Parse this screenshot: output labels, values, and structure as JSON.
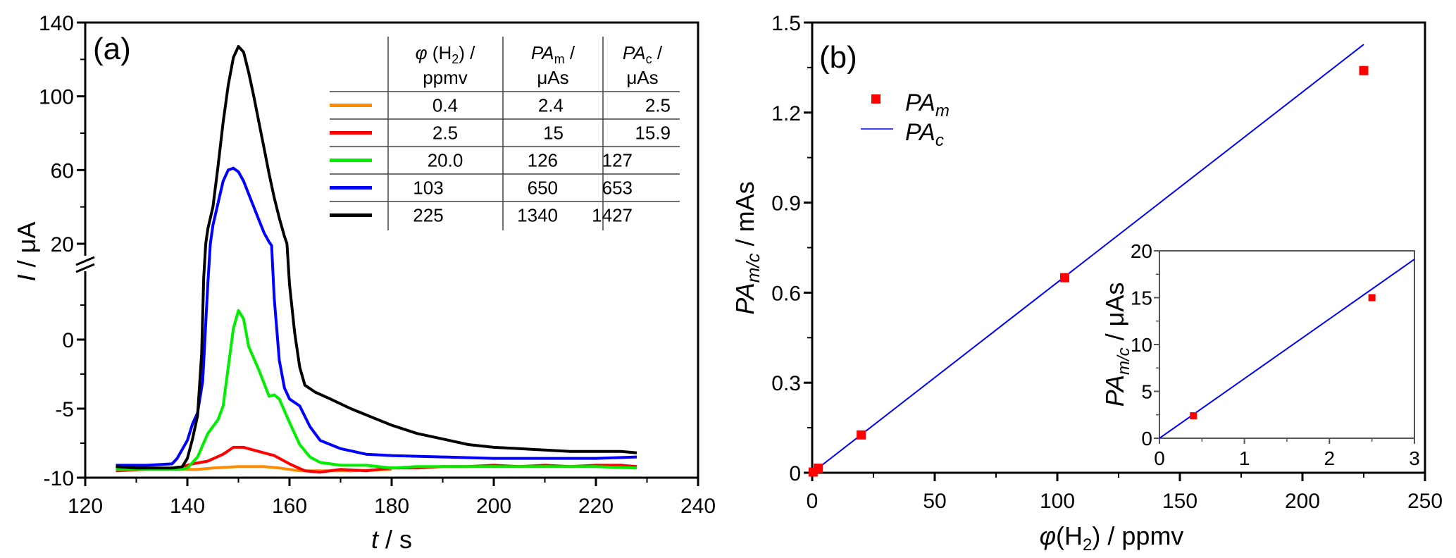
{
  "chart_data": [
    {
      "panel_label": "(a)",
      "type": "line",
      "xlabel_italic": "t",
      "xlabel_rest": " / s",
      "ylabel_italic": "I",
      "ylabel_rest": " / μA",
      "xlim": [
        120,
        240
      ],
      "x_ticks": [
        120,
        140,
        160,
        180,
        200,
        220,
        240
      ],
      "x_tick_labels": [
        "120",
        "140",
        "160",
        "180",
        "200",
        "220",
        "240"
      ],
      "y_axis_break": {
        "lower_range": [
          -10,
          5
        ],
        "upper_range": [
          10,
          140
        ]
      },
      "y_ticks": [
        -10,
        -5,
        0,
        20,
        60,
        100,
        140
      ],
      "y_tick_labels": [
        "-10",
        "-5",
        "0",
        "20",
        "60",
        "100",
        "140"
      ],
      "y_minor_ticks": [
        -7.5,
        -2.5,
        2.5,
        40,
        80,
        120
      ],
      "grid": false,
      "legend_table": {
        "headers": [
          {
            "main_italic": "φ",
            "main": " (H",
            "sub": "2",
            "tail": ") /",
            "line2": "ppmv"
          },
          {
            "main_italic": "PA",
            "sub": "m",
            "tail": " /",
            "line2": "μAs"
          },
          {
            "main_italic": "PA",
            "sub": "c",
            "tail": " /",
            "line2": "μAs"
          }
        ],
        "rows": [
          {
            "color": "#ff8c00",
            "phi": "0.4",
            "pa_m": "2.4",
            "pa_c": "2.5"
          },
          {
            "color": "#ff0000",
            "phi": "2.5",
            "pa_m": "15",
            "pa_c": "15.9"
          },
          {
            "color": "#00ee00",
            "phi": "20.0",
            "pa_m": "126",
            "pa_c": "127"
          },
          {
            "color": "#0000ff",
            "phi": "103",
            "pa_m": "650",
            "pa_c": "653"
          },
          {
            "color": "#000000",
            "phi": "225",
            "pa_m": "1340",
            "pa_c": "1427"
          }
        ]
      },
      "series": [
        {
          "name": "0.4 ppmv",
          "color": "#ff8c00",
          "points": [
            [
              138,
              -9.4
            ],
            [
              142,
              -9.4
            ],
            [
              145,
              -9.3
            ],
            [
              150,
              -9.2
            ],
            [
              155,
              -9.2
            ],
            [
              158,
              -9.3
            ],
            [
              162,
              -9.5
            ],
            [
              166,
              -9.5
            ],
            [
              172,
              -9.5
            ],
            [
              180,
              -9.4
            ]
          ]
        },
        {
          "name": "2.5 ppmv",
          "color": "#ff0000",
          "points": [
            [
              126,
              -9.5
            ],
            [
              132,
              -9.4
            ],
            [
              138,
              -9.3
            ],
            [
              141,
              -9.0
            ],
            [
              144,
              -8.8
            ],
            [
              147,
              -8.3
            ],
            [
              149,
              -7.8
            ],
            [
              151,
              -7.8
            ],
            [
              154,
              -8.1
            ],
            [
              157,
              -8.4
            ],
            [
              160,
              -9.0
            ],
            [
              163,
              -9.5
            ],
            [
              166,
              -9.6
            ],
            [
              170,
              -9.4
            ],
            [
              175,
              -9.5
            ],
            [
              180,
              -9.3
            ],
            [
              185,
              -9.3
            ],
            [
              190,
              -9.2
            ],
            [
              195,
              -9.2
            ],
            [
              200,
              -9.1
            ],
            [
              205,
              -9.2
            ],
            [
              210,
              -9.1
            ],
            [
              215,
              -9.2
            ],
            [
              220,
              -9.1
            ],
            [
              225,
              -9.1
            ],
            [
              228,
              -9.2
            ]
          ]
        },
        {
          "name": "20.0 ppmv",
          "color": "#00ee00",
          "points": [
            [
              126,
              -9.4
            ],
            [
              132,
              -9.4
            ],
            [
              138,
              -9.4
            ],
            [
              140,
              -9.3
            ],
            [
              142,
              -8.5
            ],
            [
              144,
              -6.8
            ],
            [
              146,
              -5.8
            ],
            [
              147,
              -4.8
            ],
            [
              148,
              -2.0
            ],
            [
              149,
              0.8
            ],
            [
              150,
              2.1
            ],
            [
              151,
              1.5
            ],
            [
              152,
              -0.5
            ],
            [
              154,
              -2.2
            ],
            [
              156,
              -4.1
            ],
            [
              157,
              -4.0
            ],
            [
              158,
              -4.3
            ],
            [
              160,
              -6.0
            ],
            [
              162,
              -7.6
            ],
            [
              164,
              -8.5
            ],
            [
              166,
              -8.9
            ],
            [
              170,
              -9.1
            ],
            [
              175,
              -9.1
            ],
            [
              180,
              -9.3
            ],
            [
              185,
              -9.2
            ],
            [
              190,
              -9.2
            ],
            [
              200,
              -9.2
            ],
            [
              210,
              -9.2
            ],
            [
              220,
              -9.2
            ],
            [
              228,
              -9.3
            ]
          ]
        },
        {
          "name": "103 ppmv",
          "color": "#0000ff",
          "points": [
            [
              126,
              -9.1
            ],
            [
              132,
              -9.1
            ],
            [
              137,
              -9.0
            ],
            [
              138,
              -8.6
            ],
            [
              140,
              -7.3
            ],
            [
              141,
              -6.1
            ],
            [
              142,
              -5.3
            ],
            [
              143,
              -3.0
            ],
            [
              144,
              4.0
            ],
            [
              144.5,
              20
            ],
            [
              145,
              30
            ],
            [
              146,
              42
            ],
            [
              147,
              54
            ],
            [
              148,
              60
            ],
            [
              149,
              61
            ],
            [
              150,
              59
            ],
            [
              151,
              54
            ],
            [
              152,
              47
            ],
            [
              153,
              40
            ],
            [
              154,
              33
            ],
            [
              155,
              26
            ],
            [
              156,
              21
            ],
            [
              156.5,
              19
            ],
            [
              157,
              3.0
            ],
            [
              158,
              -1.5
            ],
            [
              159,
              -3.5
            ],
            [
              160,
              -4.3
            ],
            [
              162,
              -4.8
            ],
            [
              164,
              -6.3
            ],
            [
              166,
              -7.3
            ],
            [
              170,
              -7.9
            ],
            [
              175,
              -8.3
            ],
            [
              180,
              -8.4
            ],
            [
              190,
              -8.5
            ],
            [
              200,
              -8.6
            ],
            [
              210,
              -8.6
            ],
            [
              220,
              -8.6
            ],
            [
              228,
              -8.5
            ]
          ]
        },
        {
          "name": "225 ppmv",
          "color": "#000000",
          "points": [
            [
              126,
              -9.2
            ],
            [
              130,
              -9.3
            ],
            [
              134,
              -9.3
            ],
            [
              137,
              -9.3
            ],
            [
              139,
              -9.2
            ],
            [
              140,
              -8.6
            ],
            [
              141,
              -7.2
            ],
            [
              142,
              -5.5
            ],
            [
              142.8,
              -1.0
            ],
            [
              143.2,
              4.5
            ],
            [
              143.6,
              20
            ],
            [
              144,
              28
            ],
            [
              145,
              40
            ],
            [
              146,
              62
            ],
            [
              147,
              86
            ],
            [
              148,
              106
            ],
            [
              149,
              121
            ],
            [
              150,
              127
            ],
            [
              151,
              124
            ],
            [
              152,
              113
            ],
            [
              153,
              100
            ],
            [
              154,
              86
            ],
            [
              155,
              72
            ],
            [
              156,
              58
            ],
            [
              157,
              45
            ],
            [
              158,
              34
            ],
            [
              159,
              24
            ],
            [
              159.5,
              20
            ],
            [
              160,
              4.0
            ],
            [
              161,
              0.5
            ],
            [
              162,
              -2.0
            ],
            [
              163,
              -3.3
            ],
            [
              165,
              -3.8
            ],
            [
              168,
              -4.3
            ],
            [
              172,
              -5.0
            ],
            [
              176,
              -5.6
            ],
            [
              180,
              -6.2
            ],
            [
              185,
              -6.8
            ],
            [
              190,
              -7.2
            ],
            [
              195,
              -7.6
            ],
            [
              200,
              -7.8
            ],
            [
              205,
              -7.9
            ],
            [
              210,
              -8.0
            ],
            [
              215,
              -8.1
            ],
            [
              220,
              -8.1
            ],
            [
              225,
              -8.1
            ],
            [
              228,
              -8.2
            ]
          ]
        }
      ]
    },
    {
      "panel_label": "(b)",
      "type": "scatter",
      "xlabel_italic": "φ",
      "xlabel_rest": "(H",
      "xlabel_sub": "2",
      "xlabel_tail": ") / ppmv",
      "ylabel_italic": "PA",
      "ylabel_sub": "m/c",
      "ylabel_rest": " / mAs",
      "xlim": [
        0,
        250
      ],
      "ylim": [
        0,
        1.5
      ],
      "x_ticks": [
        0,
        50,
        100,
        150,
        200,
        250
      ],
      "x_tick_labels": [
        "0",
        "50",
        "100",
        "150",
        "200",
        "250"
      ],
      "x_minor_ticks": [
        25,
        75,
        125,
        175,
        225
      ],
      "y_ticks": [
        0,
        0.3,
        0.6,
        0.9,
        1.2,
        1.5
      ],
      "y_tick_labels": [
        "0",
        "0.3",
        "0.6",
        "0.9",
        "1.2",
        "1.5"
      ],
      "y_minor_ticks": [
        0.15,
        0.45,
        0.75,
        1.05,
        1.35
      ],
      "grid": false,
      "legend": {
        "placement": "top-left",
        "entries": [
          {
            "label_main": "PA",
            "label_sub": "m",
            "marker": "square",
            "color": "#ff0000"
          },
          {
            "label_main": "PA",
            "label_sub": "c",
            "marker": "line",
            "color": "#0000ff"
          }
        ]
      },
      "series": [
        {
          "name": "PAm",
          "kind": "markers",
          "color": "#ff0000",
          "x": [
            0.4,
            2.5,
            20.0,
            103,
            225
          ],
          "y": [
            0.0024,
            0.015,
            0.126,
            0.65,
            1.34
          ]
        },
        {
          "name": "PAc",
          "kind": "line",
          "color": "#0000ff",
          "x": [
            0,
            225
          ],
          "y": [
            0,
            1.427
          ]
        }
      ],
      "inset": {
        "type": "scatter",
        "ylabel_italic": "PA",
        "ylabel_sub": "m/c",
        "ylabel_rest": " / μAs",
        "xlim": [
          0,
          3
        ],
        "ylim": [
          0,
          20
        ],
        "x_ticks": [
          0,
          1,
          2,
          3
        ],
        "x_tick_labels": [
          "0",
          "1",
          "2",
          "3"
        ],
        "x_minor_ticks": [
          0.5,
          1.5,
          2.5
        ],
        "y_ticks": [
          0,
          5,
          10,
          15,
          20
        ],
        "y_tick_labels": [
          "0",
          "5",
          "10",
          "15",
          "20"
        ],
        "y_minor_ticks": [
          2.5,
          7.5,
          12.5,
          17.5
        ],
        "series": [
          {
            "name": "PAm",
            "kind": "markers",
            "color": "#ff0000",
            "x": [
              0.4,
              2.5
            ],
            "y": [
              2.4,
              15
            ]
          },
          {
            "name": "PAc",
            "kind": "line",
            "color": "#0000ff",
            "x": [
              0,
              3
            ],
            "y": [
              0,
              19.1
            ]
          }
        ]
      }
    }
  ]
}
